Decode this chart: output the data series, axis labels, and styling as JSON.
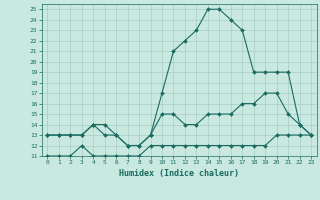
{
  "xlabel": "Humidex (Indice chaleur)",
  "bg_color": "#c8e8e0",
  "grid_color": "#a8ccc4",
  "line_color": "#1a6b60",
  "xlim": [
    -0.5,
    23.5
  ],
  "ylim": [
    11,
    25.5
  ],
  "xticks": [
    0,
    1,
    2,
    3,
    4,
    5,
    6,
    7,
    8,
    9,
    10,
    11,
    12,
    13,
    14,
    15,
    16,
    17,
    18,
    19,
    20,
    21,
    22,
    23
  ],
  "yticks": [
    11,
    12,
    13,
    14,
    15,
    16,
    17,
    18,
    19,
    20,
    21,
    22,
    23,
    24,
    25
  ],
  "line1_x": [
    0,
    1,
    2,
    3,
    4,
    5,
    6,
    7,
    8,
    9,
    10,
    11,
    12,
    13,
    14,
    15,
    16,
    17,
    18,
    19,
    20,
    21,
    22,
    23
  ],
  "line1_y": [
    13,
    13,
    13,
    13,
    14,
    14,
    13,
    12,
    12,
    13,
    17,
    21,
    22,
    23,
    25,
    25,
    24,
    23,
    19,
    19,
    19,
    19,
    14,
    13
  ],
  "line2_x": [
    0,
    1,
    2,
    3,
    4,
    5,
    6,
    7,
    8,
    9,
    10,
    11,
    12,
    13,
    14,
    15,
    16,
    17,
    18,
    19,
    20,
    21,
    22,
    23
  ],
  "line2_y": [
    13,
    13,
    13,
    13,
    14,
    13,
    13,
    12,
    12,
    13,
    15,
    15,
    14,
    14,
    15,
    15,
    15,
    16,
    16,
    17,
    17,
    15,
    14,
    13
  ],
  "line3_x": [
    0,
    1,
    2,
    3,
    4,
    5,
    6,
    7,
    8,
    9,
    10,
    11,
    12,
    13,
    14,
    15,
    16,
    17,
    18,
    19,
    20,
    21,
    22,
    23
  ],
  "line3_y": [
    11,
    11,
    11,
    12,
    11,
    11,
    11,
    11,
    11,
    12,
    12,
    12,
    12,
    12,
    12,
    12,
    12,
    12,
    12,
    12,
    13,
    13,
    13,
    13
  ],
  "marker": "D",
  "marker_size": 2.0,
  "line_width": 0.8
}
